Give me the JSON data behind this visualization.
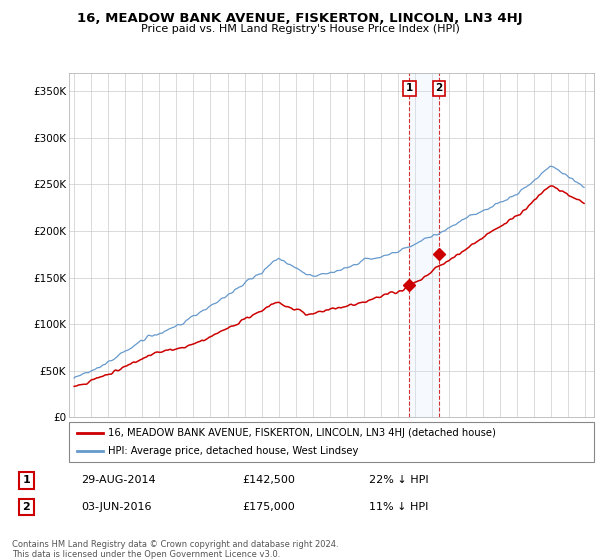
{
  "title": "16, MEADOW BANK AVENUE, FISKERTON, LINCOLN, LN3 4HJ",
  "subtitle": "Price paid vs. HM Land Registry's House Price Index (HPI)",
  "ylim": [
    0,
    370000
  ],
  "yticks": [
    0,
    50000,
    100000,
    150000,
    200000,
    250000,
    300000,
    350000
  ],
  "ytick_labels": [
    "£0",
    "£50K",
    "£100K",
    "£150K",
    "£200K",
    "£250K",
    "£300K",
    "£350K"
  ],
  "sale1_year": 2014.667,
  "sale1_price": 142500,
  "sale1_label": "1",
  "sale1_date_str": "29-AUG-2014",
  "sale1_pct": "22% ↓ HPI",
  "sale2_year": 2016.42,
  "sale2_price": 175000,
  "sale2_label": "2",
  "sale2_date_str": "03-JUN-2016",
  "sale2_pct": "11% ↓ HPI",
  "legend_line1": "16, MEADOW BANK AVENUE, FISKERTON, LINCOLN, LN3 4HJ (detached house)",
  "legend_line2": "HPI: Average price, detached house, West Lindsey",
  "footer": "Contains HM Land Registry data © Crown copyright and database right 2024.\nThis data is licensed under the Open Government Licence v3.0.",
  "red_color": "#cc0000",
  "blue_color": "#6699cc",
  "grid_color": "#cccccc",
  "span_color": "#ddeeff",
  "xmin": 1994.7,
  "xmax": 2025.5
}
